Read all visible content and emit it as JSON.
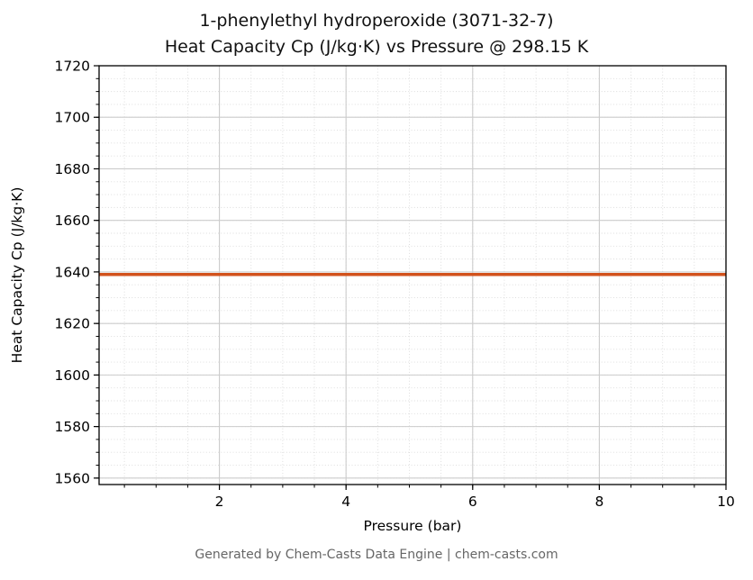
{
  "header": {
    "title_line1": "1-phenylethyl hydroperoxide (3071-32-7)",
    "title_line2": "Heat Capacity Cp (J/kg·K) vs Pressure @ 298.15 K"
  },
  "footer": {
    "text": "Generated by Chem-Casts Data Engine | chem-casts.com"
  },
  "chart_data": {
    "type": "line",
    "title": "1-phenylethyl hydroperoxide (3071-32-7)\nHeat Capacity Cp (J/kg·K) vs Pressure @ 298.15 K",
    "substance": "1-phenylethyl hydroperoxide",
    "cas_number": "3071-32-7",
    "temperature_K": 298.15,
    "xlabel": "Pressure (bar)",
    "ylabel": "Heat Capacity Cp (J/kg·K)",
    "xlim": [
      0.1,
      10
    ],
    "ylim": [
      1557.5,
      1720
    ],
    "x_ticks": [
      2,
      4,
      6,
      8,
      10
    ],
    "y_ticks": [
      1560,
      1580,
      1600,
      1620,
      1640,
      1660,
      1680,
      1700,
      1720
    ],
    "x_minor_step": 0.5,
    "y_minor_step": 5,
    "grid": true,
    "legend": false,
    "series": [
      {
        "name": "Heat Capacity Cp",
        "color": "#d2521c",
        "x": [
          0.1,
          1,
          2,
          3,
          4,
          5,
          6,
          7,
          8,
          9,
          10
        ],
        "y": [
          1639,
          1639,
          1639,
          1639,
          1639,
          1639,
          1639,
          1639,
          1639,
          1639,
          1639
        ]
      }
    ]
  },
  "colors": {
    "line": "#d2521c",
    "grid_major": "#cccccc",
    "grid_minor": "#dadada",
    "axis": "#000000",
    "title_text": "#111111",
    "footer_text": "#666666",
    "background": "#ffffff"
  }
}
